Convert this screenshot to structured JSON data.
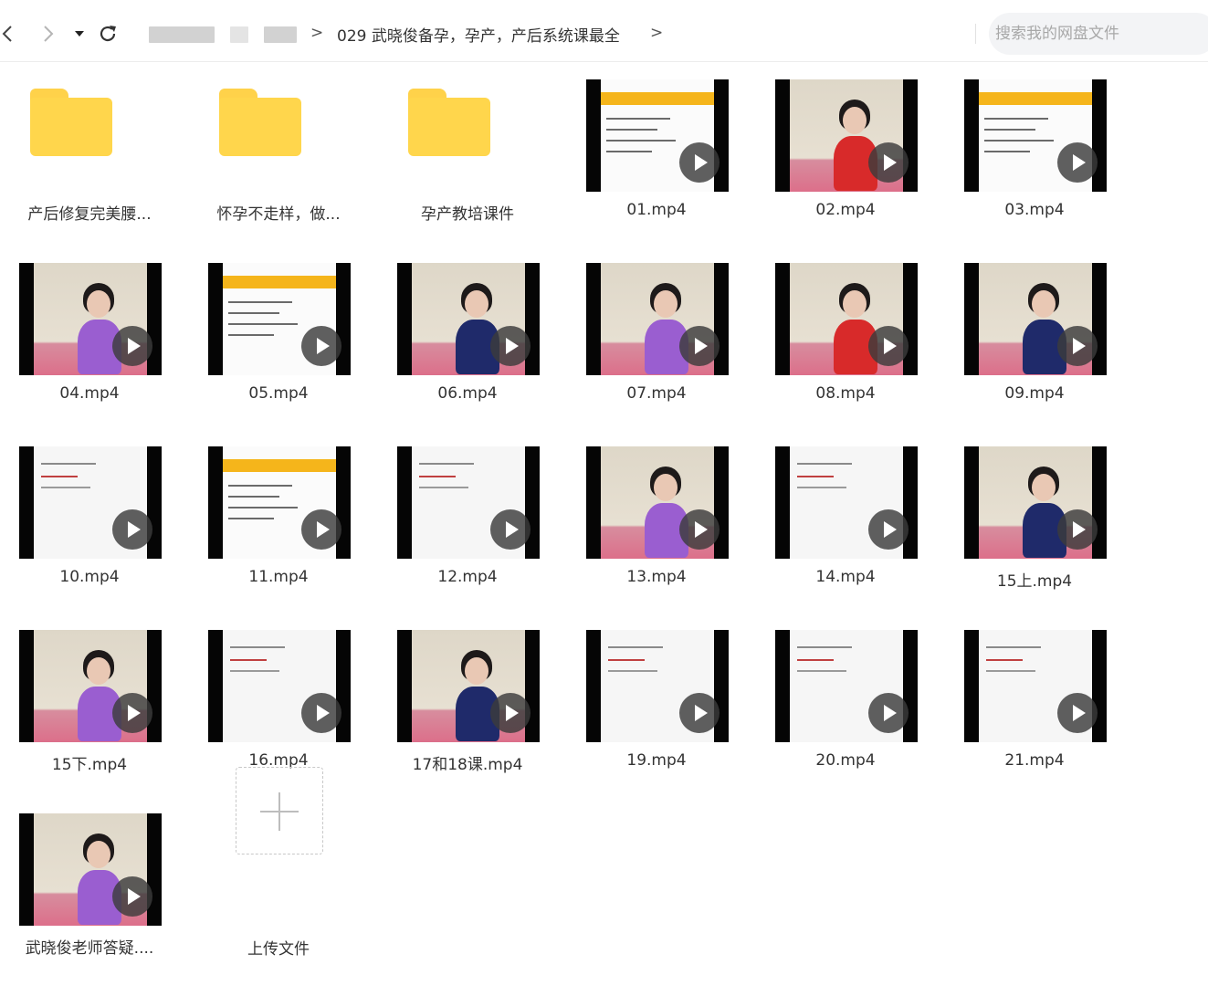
{
  "toolbar": {
    "back_icon": "chevron-left-icon",
    "forward_icon": "chevron-right-icon",
    "history_icon": "caret-down-icon",
    "refresh_icon": "refresh-icon",
    "breadcrumb_separator": ">",
    "breadcrumb_current": "029 武晓俊备孕，孕产，产后系统课最全",
    "search_placeholder": "搜索我的网盘文件"
  },
  "files": [
    {
      "name": "产后修复完美腰...",
      "type": "folder"
    },
    {
      "name": "怀孕不走样，做...",
      "type": "folder"
    },
    {
      "name": "孕产教培课件",
      "type": "folder"
    },
    {
      "name": "01.mp4",
      "type": "video"
    },
    {
      "name": "02.mp4",
      "type": "video"
    },
    {
      "name": "03.mp4",
      "type": "video"
    },
    {
      "name": "04.mp4",
      "type": "video"
    },
    {
      "name": "05.mp4",
      "type": "video"
    },
    {
      "name": "06.mp4",
      "type": "video"
    },
    {
      "name": "07.mp4",
      "type": "video"
    },
    {
      "name": "08.mp4",
      "type": "video"
    },
    {
      "name": "09.mp4",
      "type": "video"
    },
    {
      "name": "10.mp4",
      "type": "video"
    },
    {
      "name": "11.mp4",
      "type": "video"
    },
    {
      "name": "12.mp4",
      "type": "video"
    },
    {
      "name": "13.mp4",
      "type": "video"
    },
    {
      "name": "14.mp4",
      "type": "video"
    },
    {
      "name": "15上.mp4",
      "type": "video"
    },
    {
      "name": "15下.mp4",
      "type": "video"
    },
    {
      "name": "16.mp4",
      "type": "video"
    },
    {
      "name": "17和18课.mp4",
      "type": "video"
    },
    {
      "name": "19.mp4",
      "type": "video"
    },
    {
      "name": "20.mp4",
      "type": "video"
    },
    {
      "name": "21.mp4",
      "type": "video"
    },
    {
      "name": "武晓俊老师答疑....",
      "type": "video"
    }
  ],
  "upload": {
    "label": "上传文件",
    "icon": "plus-icon"
  },
  "colors": {
    "folder": "#ffd64c",
    "accent_slide": "#f5b51b",
    "mat_pink": "#dc6f8a"
  }
}
